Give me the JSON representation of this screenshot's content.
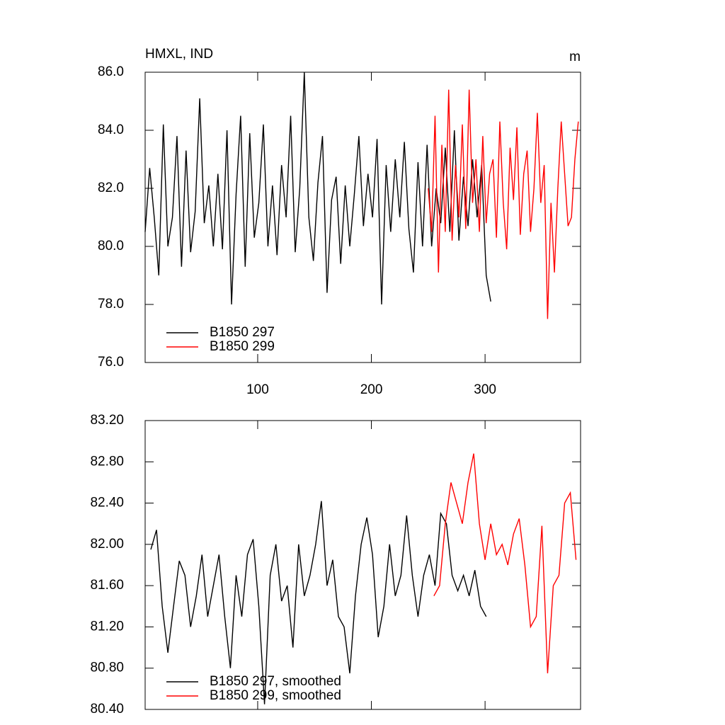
{
  "chart_data": [
    {
      "type": "line",
      "title": "HMXL, IND",
      "units": "m",
      "xlim": [
        1,
        384
      ],
      "xticks": [
        100,
        200,
        300
      ],
      "ylim": [
        76,
        86
      ],
      "yticks": [
        {
          "value": 76,
          "label": "76.0"
        },
        {
          "value": 78,
          "label": "78.0"
        },
        {
          "value": 80,
          "label": "80.0"
        },
        {
          "value": 82,
          "label": "82.0"
        },
        {
          "value": 84,
          "label": "84.0"
        },
        {
          "value": 86,
          "label": "86.0"
        }
      ],
      "series": [
        {
          "name": "B1850 297",
          "color": "#000000",
          "x": [
            1,
            5,
            9,
            13,
            17,
            21,
            25,
            29,
            33,
            37,
            41,
            45,
            49,
            53,
            57,
            61,
            65,
            69,
            73,
            77,
            81,
            85,
            89,
            93,
            97,
            101,
            105,
            109,
            113,
            117,
            121,
            125,
            129,
            133,
            137,
            141,
            145,
            149,
            153,
            157,
            161,
            165,
            169,
            173,
            177,
            181,
            185,
            189,
            193,
            197,
            201,
            205,
            209,
            213,
            217,
            221,
            225,
            229,
            233,
            237,
            241,
            245,
            249,
            253,
            257,
            261,
            265,
            269,
            273,
            277,
            281,
            285,
            289,
            293,
            297,
            301,
            305
          ],
          "values": [
            80.5,
            82.7,
            81.0,
            79.0,
            84.2,
            80.0,
            81.0,
            83.8,
            79.3,
            83.3,
            79.8,
            81.2,
            85.1,
            80.8,
            82.1,
            80.0,
            82.5,
            79.9,
            84.0,
            78.0,
            81.8,
            84.5,
            79.3,
            83.9,
            80.3,
            81.5,
            84.2,
            80.0,
            82.1,
            79.7,
            82.8,
            81.0,
            84.5,
            79.8,
            82.0,
            86.0,
            81.0,
            79.5,
            82.2,
            83.8,
            78.4,
            81.6,
            82.4,
            79.4,
            82.1,
            80.0,
            81.8,
            83.8,
            80.7,
            82.5,
            81.0,
            83.7,
            78.0,
            82.8,
            80.5,
            83.0,
            81.0,
            83.6,
            80.6,
            79.1,
            82.9,
            80.0,
            83.5,
            80.0,
            82.0,
            80.8,
            83.4,
            80.5,
            84.0,
            80.2,
            82.4,
            80.7,
            83.0,
            81.0,
            82.8,
            79.0,
            78.1
          ]
        },
        {
          "name": "B1850 299",
          "color": "#ff0000",
          "x": [
            250,
            253,
            256,
            259,
            262,
            265,
            268,
            271,
            274,
            277,
            280,
            283,
            286,
            289,
            292,
            295,
            298,
            301,
            304,
            307,
            310,
            313,
            316,
            319,
            322,
            325,
            328,
            331,
            334,
            337,
            340,
            343,
            346,
            349,
            352,
            355,
            358,
            361,
            364,
            367,
            370,
            373,
            376,
            379,
            382
          ],
          "values": [
            82.0,
            80.5,
            84.5,
            79.1,
            83.5,
            80.5,
            85.4,
            80.2,
            82.8,
            81.0,
            84.2,
            80.6,
            85.4,
            81.5,
            83.0,
            80.5,
            83.8,
            80.8,
            82.5,
            83.0,
            80.3,
            84.3,
            81.5,
            79.9,
            83.4,
            81.6,
            84.1,
            80.4,
            82.5,
            83.3,
            80.5,
            82.0,
            84.6,
            81.5,
            82.8,
            77.5,
            81.5,
            79.1,
            82.0,
            84.3,
            82.5,
            80.7,
            81.0,
            83.0,
            84.3
          ]
        }
      ]
    },
    {
      "type": "line",
      "xlim": [
        1,
        384
      ],
      "ylim": [
        80.4,
        83.2
      ],
      "yticks": [
        {
          "value": 80.4,
          "label": "80.40"
        },
        {
          "value": 80.8,
          "label": "80.80"
        },
        {
          "value": 81.2,
          "label": "81.20"
        },
        {
          "value": 81.6,
          "label": "81.60"
        },
        {
          "value": 82,
          "label": "82.00"
        },
        {
          "value": 82.4,
          "label": "82.40"
        },
        {
          "value": 82.8,
          "label": "82.80"
        },
        {
          "value": 83.2,
          "label": "83.20"
        }
      ],
      "series": [
        {
          "name": "B1850 297, smoothed",
          "color": "#000000",
          "x": [
            6,
            11,
            16,
            21,
            26,
            31,
            36,
            41,
            46,
            51,
            56,
            61,
            66,
            71,
            76,
            81,
            86,
            91,
            96,
            101,
            106,
            111,
            116,
            121,
            126,
            131,
            136,
            141,
            146,
            151,
            156,
            161,
            166,
            171,
            176,
            181,
            186,
            191,
            196,
            201,
            206,
            211,
            216,
            221,
            226,
            231,
            236,
            241,
            246,
            251,
            256,
            261,
            266,
            271,
            276,
            281,
            286,
            291,
            296,
            301
          ],
          "values": [
            81.95,
            82.14,
            81.4,
            80.95,
            81.4,
            81.84,
            81.7,
            81.2,
            81.5,
            81.9,
            81.3,
            81.6,
            81.9,
            81.3,
            80.8,
            81.7,
            81.3,
            81.9,
            82.05,
            81.4,
            80.45,
            81.7,
            82.0,
            81.45,
            81.6,
            81.0,
            82.0,
            81.5,
            81.7,
            82.0,
            82.42,
            81.6,
            81.85,
            81.3,
            81.2,
            80.75,
            81.5,
            82.0,
            82.26,
            81.9,
            81.1,
            81.4,
            82.0,
            81.5,
            81.7,
            82.28,
            81.7,
            81.3,
            81.7,
            81.9,
            81.6,
            82.3,
            82.2,
            81.7,
            81.55,
            81.7,
            81.5,
            81.75,
            81.4,
            81.3
          ]
        },
        {
          "name": "B1850 299, smoothed",
          "color": "#ff0000",
          "x": [
            255,
            260,
            265,
            270,
            275,
            280,
            285,
            290,
            295,
            300,
            305,
            310,
            315,
            320,
            325,
            330,
            335,
            340,
            345,
            350,
            355,
            360,
            365,
            370,
            375,
            380
          ],
          "values": [
            81.5,
            81.6,
            82.2,
            82.6,
            82.4,
            82.2,
            82.6,
            82.88,
            82.2,
            81.85,
            82.2,
            81.9,
            82.0,
            81.8,
            82.1,
            82.25,
            81.8,
            81.2,
            81.3,
            82.18,
            80.75,
            81.6,
            81.7,
            82.4,
            82.5,
            81.85
          ]
        }
      ]
    }
  ]
}
